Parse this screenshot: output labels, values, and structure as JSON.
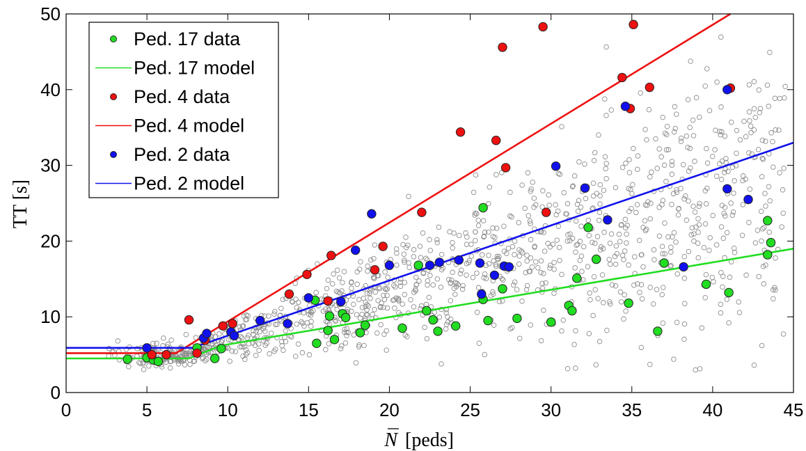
{
  "chart_data": {
    "type": "scatter",
    "title": "",
    "xlabel": "N",
    "xlabel_unit": "[peds]",
    "ylabel": "TT [s]",
    "xlim": [
      0,
      45
    ],
    "ylim": [
      0,
      50
    ],
    "xticks": [
      0,
      5,
      10,
      15,
      20,
      25,
      30,
      35,
      40,
      45
    ],
    "yticks": [
      0,
      10,
      20,
      30,
      40,
      50
    ],
    "grid": false,
    "legend_position": "top-left",
    "background_cloud": {
      "description": "all pedestrians (gray hollow circles)",
      "color": "#8c8c8c",
      "count": 1200
    },
    "series": [
      {
        "name": "Ped. 17 data",
        "kind": "points",
        "color": "#22dd22",
        "points": [
          [
            3.8,
            4.4
          ],
          [
            5.0,
            4.6
          ],
          [
            5.4,
            4.3
          ],
          [
            5.7,
            4.1
          ],
          [
            8.1,
            5.9
          ],
          [
            9.2,
            4.5
          ],
          [
            9.6,
            5.8
          ],
          [
            15.5,
            6.5
          ],
          [
            15.4,
            12.2
          ],
          [
            16.2,
            8.2
          ],
          [
            16.3,
            10.1
          ],
          [
            16.6,
            7.0
          ],
          [
            17.1,
            10.4
          ],
          [
            17.3,
            9.9
          ],
          [
            18.2,
            7.9
          ],
          [
            18.5,
            8.9
          ],
          [
            20.8,
            8.5
          ],
          [
            21.8,
            16.8
          ],
          [
            22.3,
            10.8
          ],
          [
            22.7,
            9.6
          ],
          [
            23.0,
            8.1
          ],
          [
            24.1,
            8.8
          ],
          [
            25.8,
            24.4
          ],
          [
            25.8,
            12.3
          ],
          [
            26.1,
            9.5
          ],
          [
            27.0,
            13.7
          ],
          [
            27.9,
            9.8
          ],
          [
            30.0,
            9.3
          ],
          [
            31.1,
            11.5
          ],
          [
            31.3,
            10.8
          ],
          [
            31.6,
            15.1
          ],
          [
            32.3,
            21.8
          ],
          [
            32.8,
            17.6
          ],
          [
            34.8,
            11.8
          ],
          [
            36.6,
            8.1
          ],
          [
            37.0,
            17.1
          ],
          [
            39.6,
            14.3
          ],
          [
            41.0,
            13.2
          ],
          [
            43.4,
            18.2
          ],
          [
            43.4,
            22.7
          ],
          [
            43.6,
            19.8
          ]
        ]
      },
      {
        "name": "Ped. 17 model",
        "kind": "line",
        "color": "#22dd22",
        "points": [
          [
            0,
            4.5
          ],
          [
            7.6,
            4.5
          ],
          [
            9.6,
            6.2
          ],
          [
            45,
            19.0
          ]
        ]
      },
      {
        "name": "Ped. 4 data",
        "kind": "points",
        "color": "#ee1111",
        "points": [
          [
            5.3,
            5.0
          ],
          [
            6.2,
            5.0
          ],
          [
            7.6,
            9.6
          ],
          [
            8.1,
            5.2
          ],
          [
            8.6,
            6.9
          ],
          [
            9.7,
            8.8
          ],
          [
            10.3,
            9.1
          ],
          [
            13.8,
            13.0
          ],
          [
            14.9,
            15.6
          ],
          [
            16.2,
            12.1
          ],
          [
            16.4,
            18.1
          ],
          [
            19.1,
            16.2
          ],
          [
            19.6,
            19.3
          ],
          [
            22.0,
            23.8
          ],
          [
            24.4,
            34.4
          ],
          [
            26.6,
            33.3
          ],
          [
            27.0,
            45.6
          ],
          [
            27.2,
            29.7
          ],
          [
            29.5,
            48.3
          ],
          [
            29.7,
            23.8
          ],
          [
            34.4,
            41.6
          ],
          [
            34.9,
            37.5
          ],
          [
            35.1,
            48.6
          ],
          [
            36.1,
            40.3
          ],
          [
            41.1,
            40.2
          ]
        ]
      },
      {
        "name": "Ped. 4 model",
        "kind": "line",
        "color": "#ee1111",
        "points": [
          [
            0,
            5.2
          ],
          [
            6.8,
            5.2
          ],
          [
            41.1,
            50.0
          ]
        ]
      },
      {
        "name": "Ped. 2 data",
        "kind": "points",
        "color": "#1111ee",
        "points": [
          [
            5.0,
            5.9
          ],
          [
            8.5,
            7.2
          ],
          [
            8.7,
            7.8
          ],
          [
            10.2,
            8.0
          ],
          [
            10.4,
            7.5
          ],
          [
            12.0,
            9.5
          ],
          [
            13.7,
            9.1
          ],
          [
            15.0,
            12.5
          ],
          [
            17.0,
            12.0
          ],
          [
            17.9,
            18.8
          ],
          [
            18.9,
            23.6
          ],
          [
            20.0,
            16.8
          ],
          [
            22.5,
            16.8
          ],
          [
            23.1,
            17.2
          ],
          [
            24.3,
            17.5
          ],
          [
            25.6,
            17.1
          ],
          [
            25.7,
            13.0
          ],
          [
            26.5,
            15.5
          ],
          [
            27.1,
            16.7
          ],
          [
            27.4,
            16.6
          ],
          [
            30.3,
            29.9
          ],
          [
            32.1,
            27.0
          ],
          [
            33.5,
            22.8
          ],
          [
            34.6,
            37.8
          ],
          [
            38.2,
            16.6
          ],
          [
            40.9,
            40.0
          ],
          [
            40.9,
            26.9
          ],
          [
            42.2,
            25.5
          ]
        ]
      },
      {
        "name": "Ped. 2 model",
        "kind": "line",
        "color": "#1111ee",
        "points": [
          [
            0,
            5.9
          ],
          [
            7.8,
            5.9
          ],
          [
            45,
            33.0
          ]
        ]
      }
    ]
  }
}
